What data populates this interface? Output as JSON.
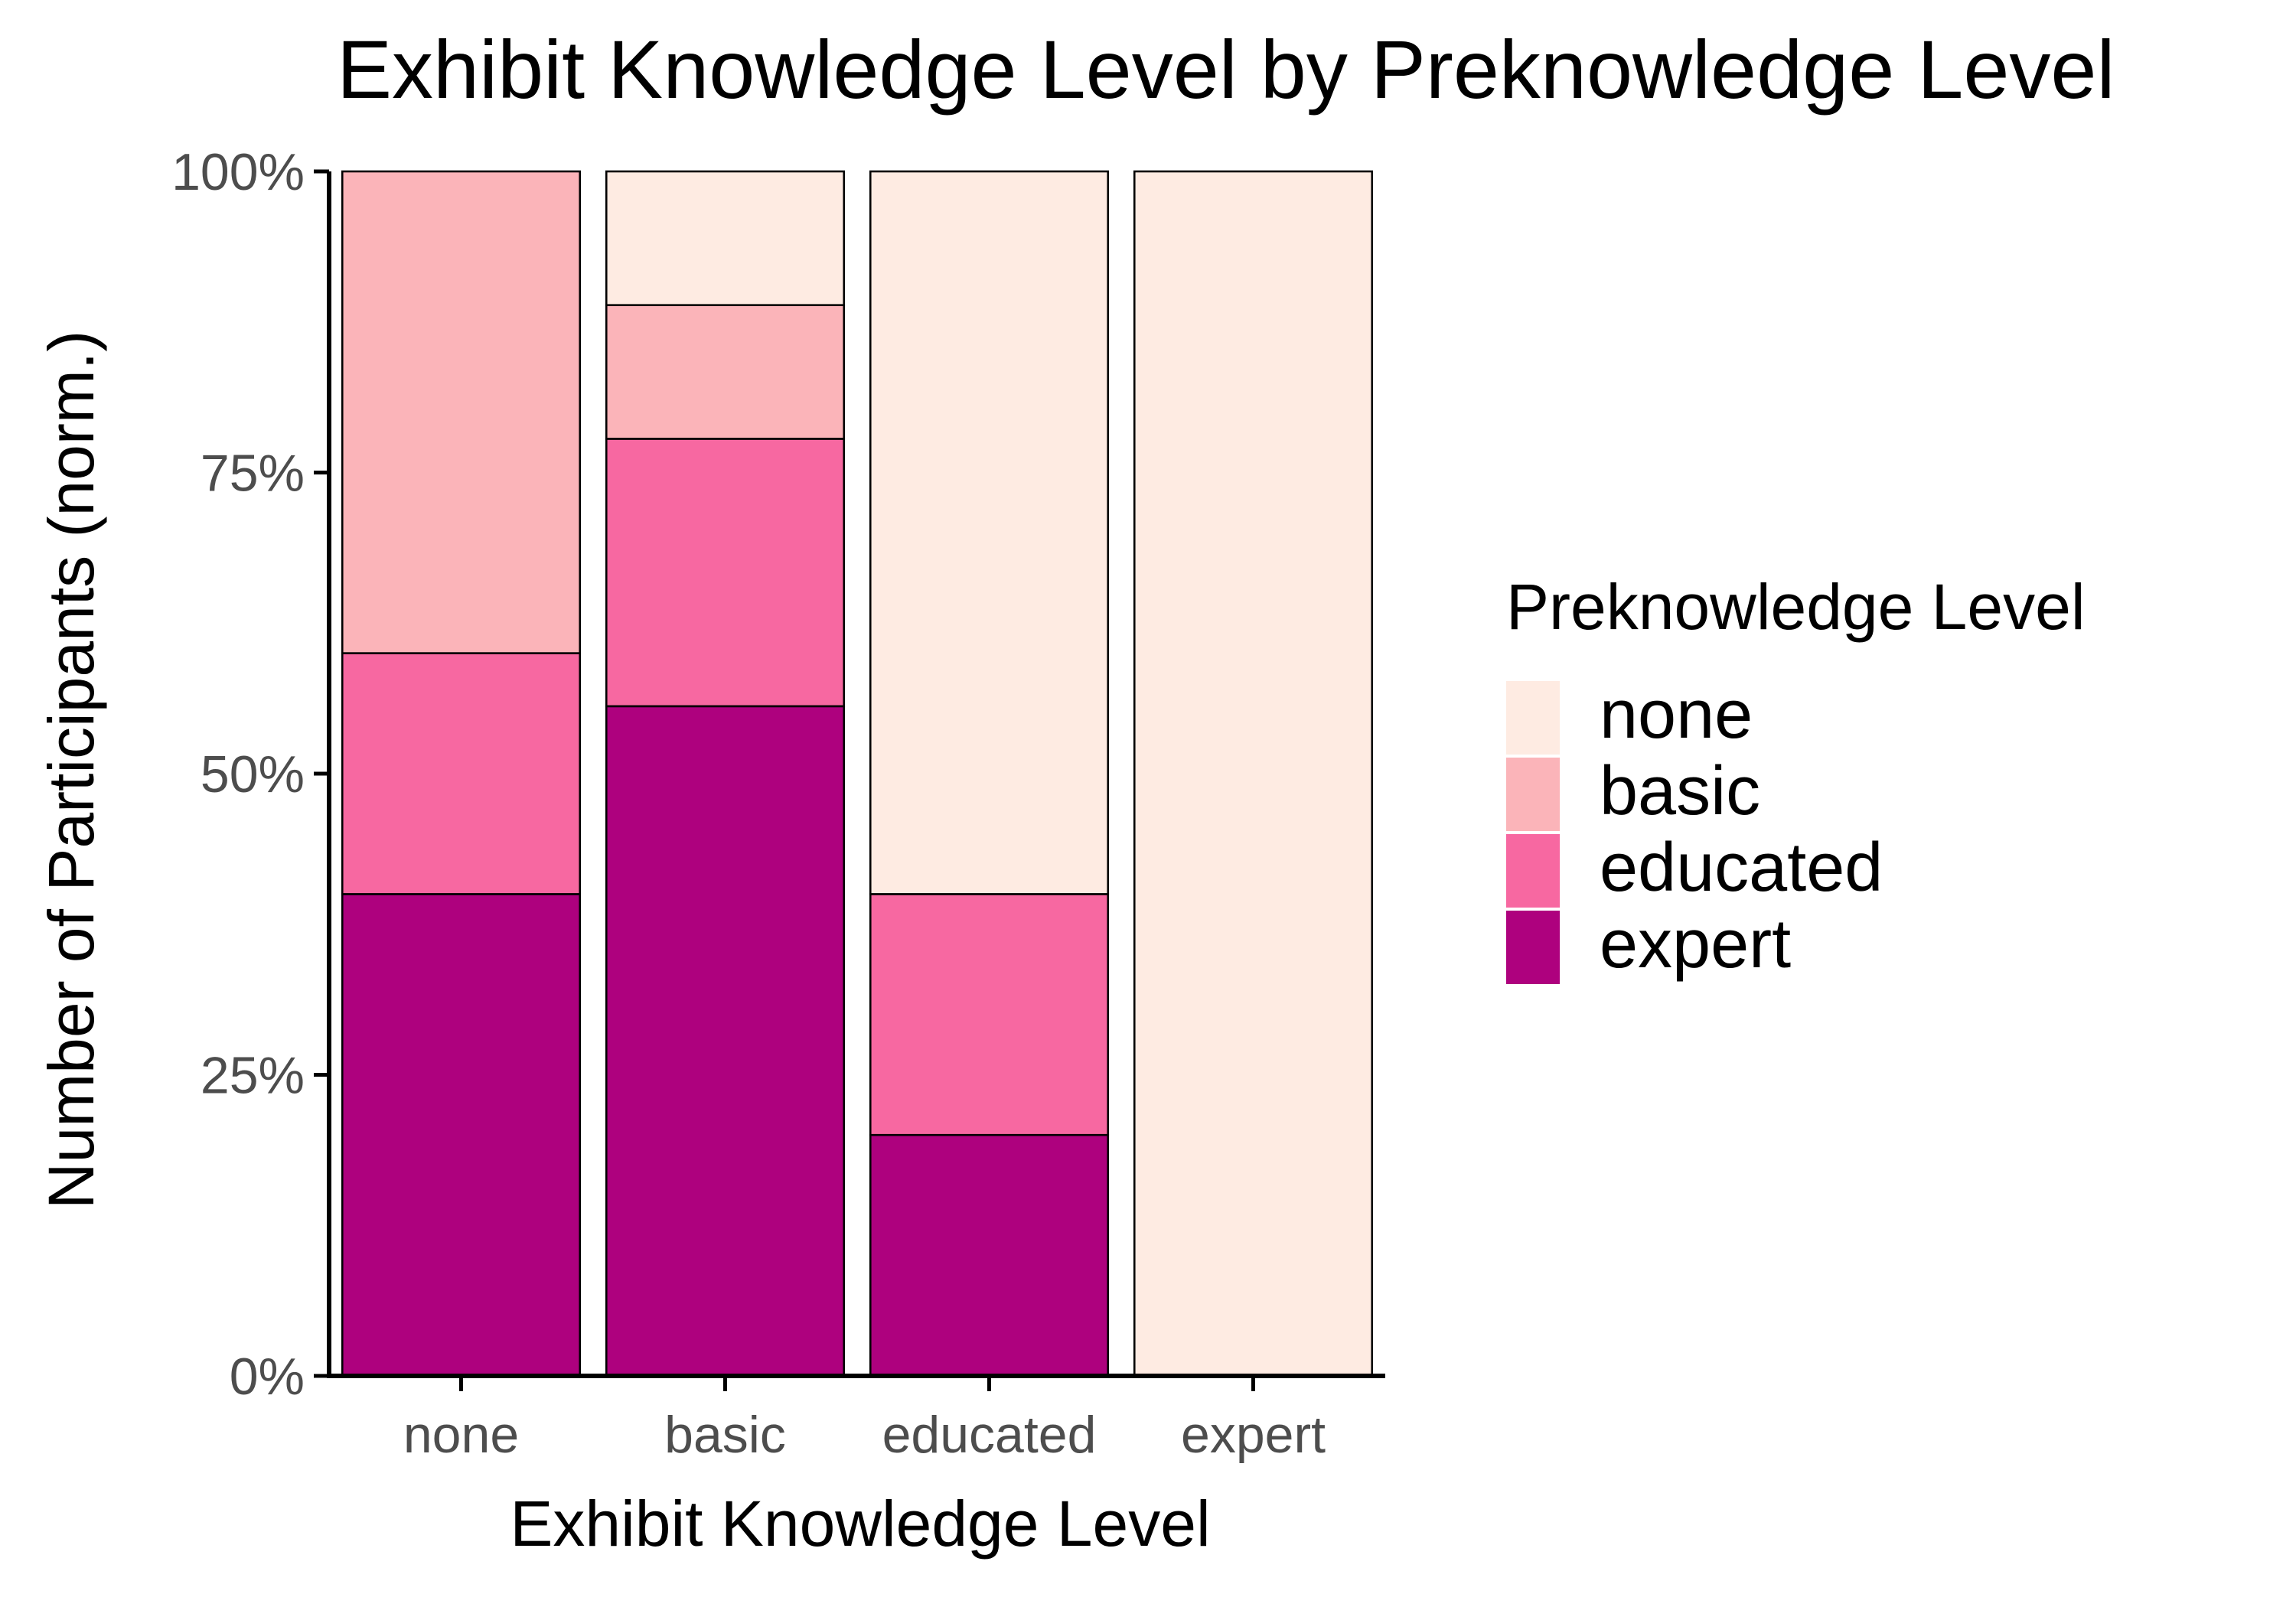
{
  "chart_data": {
    "type": "bar",
    "stacked": true,
    "normalized": true,
    "title": "Exhibit Knowledge Level by Preknowledge Level",
    "xlabel": "Exhibit Knowledge Level",
    "ylabel": "Number of Participants (norm.)",
    "categories": [
      "none",
      "basic",
      "educated",
      "expert"
    ],
    "ylim": [
      0,
      100
    ],
    "y_ticks": [
      0,
      25,
      50,
      75,
      100
    ],
    "y_tick_labels": [
      "0%",
      "25%",
      "50%",
      "75%",
      "100%"
    ],
    "legend": {
      "title": "Preknowledge Level",
      "position": "right"
    },
    "series": [
      {
        "name": "expert",
        "color": "#ae017e",
        "values": [
          40,
          55.6,
          20,
          0
        ]
      },
      {
        "name": "educated",
        "color": "#f768a1",
        "values": [
          20,
          22.2,
          20,
          0
        ]
      },
      {
        "name": "basic",
        "color": "#fbb4b9",
        "values": [
          40,
          11.1,
          0,
          0
        ]
      },
      {
        "name": "none",
        "color": "#feebe2",
        "values": [
          0,
          11.1,
          60,
          100
        ]
      }
    ],
    "legend_order": [
      "none",
      "basic",
      "educated",
      "expert"
    ],
    "grid": false
  }
}
